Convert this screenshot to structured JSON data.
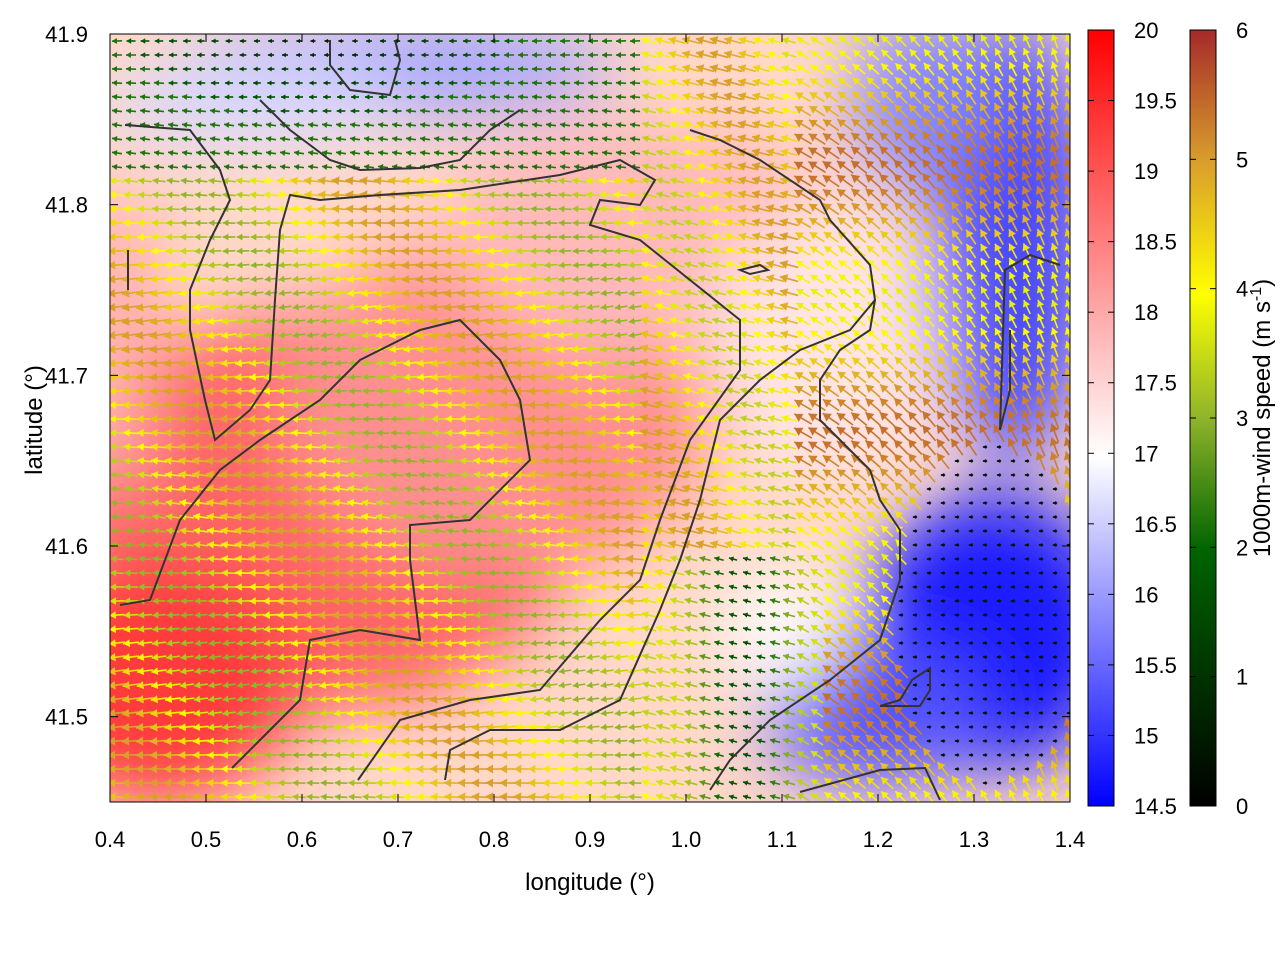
{
  "chart_data": {
    "type": "heatmap",
    "subtype": "temperature field with wind vectors and contours",
    "title": "",
    "xlabel": "longitude (°)",
    "ylabel": "latitude (°)",
    "xlim": [
      0.4,
      1.4
    ],
    "ylim": [
      41.45,
      41.9
    ],
    "xticks": [
      0.4,
      0.5,
      0.6,
      0.7,
      0.8,
      0.9,
      1.0,
      1.1,
      1.2,
      1.3,
      1.4
    ],
    "xtick_labels": [
      "0.4",
      "0.5",
      "0.6",
      "0.7",
      "0.8",
      "0.9",
      "1.0",
      "1.1",
      "1.2",
      "1.3",
      "1.4"
    ],
    "yticks": [
      41.5,
      41.6,
      41.7,
      41.8,
      41.9
    ],
    "ytick_labels": [
      "41.5",
      "41.6",
      "41.7",
      "41.8",
      "41.9"
    ],
    "grid": false,
    "colorbar_temperature": {
      "label": "",
      "min": 14.5,
      "max": 20,
      "ticks": [
        "14.5",
        "15",
        "15.5",
        "16",
        "16.5",
        "17",
        "17.5",
        "18",
        "18.5",
        "19",
        "19.5",
        "20"
      ],
      "colors": {
        "low": "#0000ff",
        "mid": "#ffffff",
        "high": "#ff0000"
      }
    },
    "colorbar_wind": {
      "label": "1000m-wind speed (m s",
      "label_superscript": "-1",
      "label_end": ")",
      "min": 0,
      "max": 6,
      "ticks": [
        "0",
        "1",
        "2",
        "3",
        "4",
        "5",
        "6"
      ],
      "colors": [
        "#000000",
        "#006400",
        "#8fb42a",
        "#ffff00",
        "#d99e2b",
        "#a52a2a"
      ]
    },
    "temperature_regions": [
      {
        "area": "west-southwest interior",
        "value": 18.8
      },
      {
        "area": "central interior",
        "value": 18.0
      },
      {
        "area": "north strip",
        "value": 16.0
      },
      {
        "area": "northeast",
        "value": 15.6
      },
      {
        "area": "southeast",
        "value": 14.7
      }
    ],
    "wind_regions": [
      {
        "area": "central",
        "direction": "westward",
        "speed": 4.8
      },
      {
        "area": "northeast",
        "direction": "northwestward",
        "speed": 5.2
      },
      {
        "area": "southeast cold pool",
        "direction": "calm",
        "speed": 0.5
      },
      {
        "area": "north strip",
        "direction": "westward",
        "speed": 1.8
      }
    ]
  }
}
